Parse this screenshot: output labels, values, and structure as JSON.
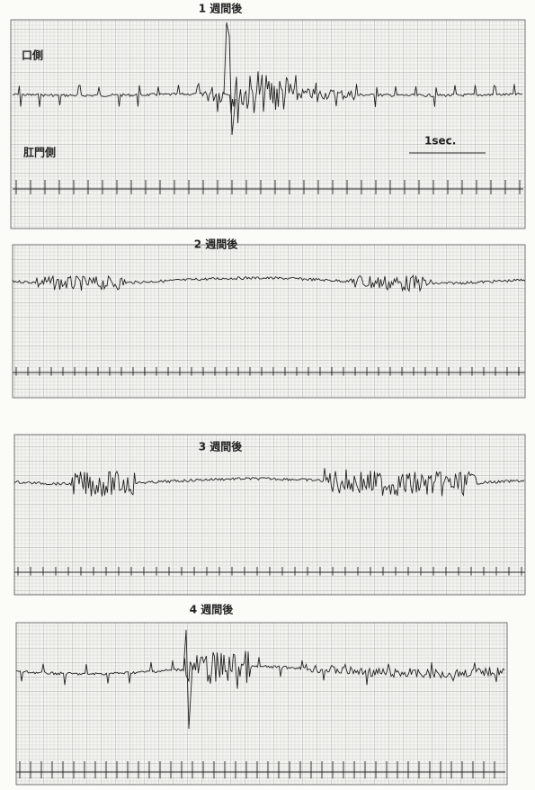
{
  "panels": [
    {
      "title": "1 週間後",
      "upper_label": "口側",
      "lower_label": "肛門側",
      "scale_label": "1sec."
    },
    {
      "title": "2 週間後"
    },
    {
      "title": "3 週間後"
    },
    {
      "title": "4 週間後"
    }
  ]
}
